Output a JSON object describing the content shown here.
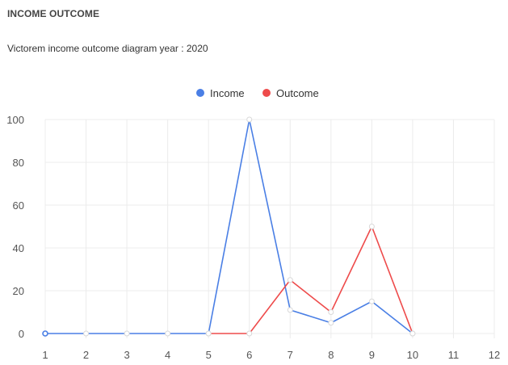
{
  "header": {
    "title": "INCOME OUTCOME",
    "subtitle": "Victorem income outcome diagram year : 2020"
  },
  "chart_data": {
    "type": "line",
    "x": [
      1,
      2,
      3,
      4,
      5,
      6,
      7,
      8,
      9,
      10
    ],
    "x_ticks": [
      1,
      2,
      3,
      4,
      5,
      6,
      7,
      8,
      9,
      10,
      11,
      12
    ],
    "y_ticks": [
      0,
      20,
      40,
      60,
      80,
      100
    ],
    "xlim": [
      1,
      12
    ],
    "ylim": [
      0,
      100
    ],
    "grid": true,
    "legend_position": "top-center",
    "series": [
      {
        "name": "Income",
        "color": "#4a7fe5",
        "values": [
          0,
          0,
          0,
          0,
          0,
          100,
          11,
          5,
          15,
          0
        ]
      },
      {
        "name": "Outcome",
        "color": "#ee4b4b",
        "values": [
          null,
          null,
          null,
          null,
          0,
          0,
          25,
          10,
          50,
          0
        ]
      }
    ],
    "title": "",
    "xlabel": "",
    "ylabel": ""
  }
}
